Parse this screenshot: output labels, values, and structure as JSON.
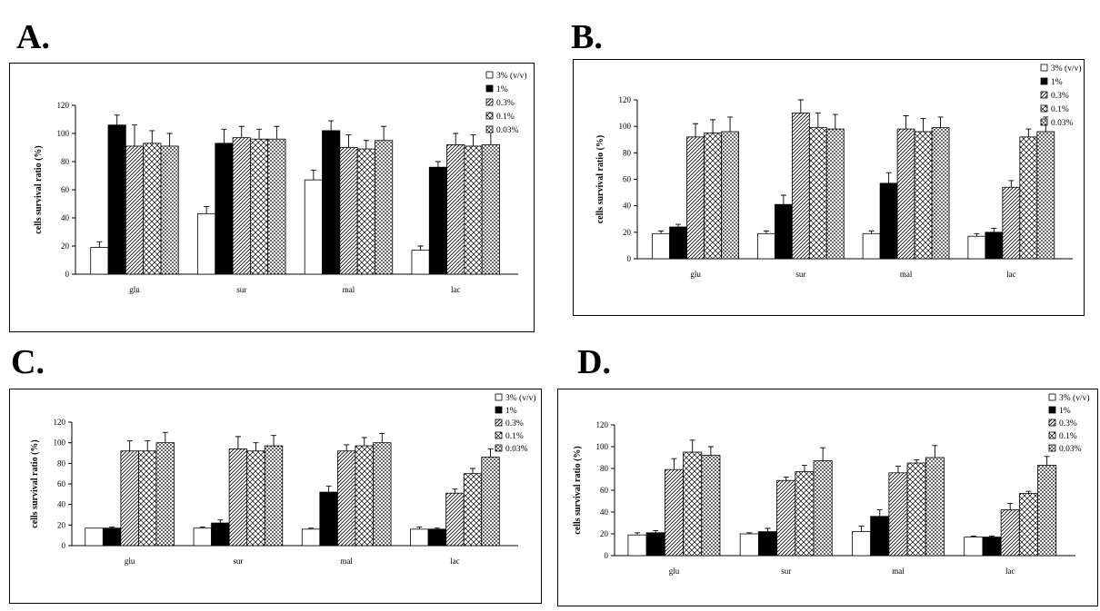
{
  "chart_data": [
    {
      "panel": "A.",
      "type": "bar",
      "ylabel": "cells survival ratio (%)",
      "ylim": [
        0,
        120
      ],
      "yticks": [
        0,
        20,
        40,
        60,
        80,
        100,
        120
      ],
      "categories": [
        "glu",
        "sur",
        "mal",
        "lac"
      ],
      "legend_position": "top-right",
      "series": [
        {
          "name": "3% (v/v)",
          "pattern": "white",
          "values": [
            19,
            43,
            67,
            17
          ],
          "errors": [
            4,
            5,
            7,
            3
          ]
        },
        {
          "name": "1%",
          "pattern": "black",
          "values": [
            106,
            93,
            102,
            76
          ],
          "errors": [
            7,
            10,
            7,
            4
          ]
        },
        {
          "name": "0.3%",
          "pattern": "diagonal",
          "values": [
            91,
            97,
            90,
            92
          ],
          "errors": [
            15,
            8,
            9,
            8
          ]
        },
        {
          "name": "0.1%",
          "pattern": "crosshatch",
          "values": [
            93,
            96,
            89,
            91
          ],
          "errors": [
            9,
            7,
            6,
            8
          ]
        },
        {
          "name": "0.03%",
          "pattern": "dots",
          "values": [
            91,
            96,
            95,
            92
          ],
          "errors": [
            9,
            9,
            10,
            9
          ]
        }
      ]
    },
    {
      "panel": "B.",
      "type": "bar",
      "ylabel": "cells survival ratio (%)",
      "ylim": [
        0,
        120
      ],
      "yticks": [
        0,
        20,
        40,
        60,
        80,
        100,
        120
      ],
      "categories": [
        "glu",
        "sur",
        "mal",
        "lac"
      ],
      "legend_position": "top-right",
      "series": [
        {
          "name": "3% (v/v)",
          "pattern": "white",
          "values": [
            19,
            19,
            19,
            17
          ],
          "errors": [
            2,
            2,
            2,
            2
          ]
        },
        {
          "name": "1%",
          "pattern": "black",
          "values": [
            24,
            41,
            57,
            20
          ],
          "errors": [
            2,
            7,
            8,
            3
          ]
        },
        {
          "name": "0.3%",
          "pattern": "diagonal",
          "values": [
            92,
            110,
            98,
            54
          ],
          "errors": [
            10,
            10,
            10,
            5
          ]
        },
        {
          "name": "0.1%",
          "pattern": "crosshatch",
          "values": [
            95,
            99,
            96,
            92
          ],
          "errors": [
            10,
            11,
            10,
            6
          ]
        },
        {
          "name": "0.03%",
          "pattern": "dots",
          "values": [
            96,
            98,
            99,
            96
          ],
          "errors": [
            11,
            11,
            8,
            11
          ]
        }
      ]
    },
    {
      "panel": "C.",
      "type": "bar",
      "ylabel": "cells survival ratio (%)",
      "ylim": [
        0,
        120
      ],
      "yticks": [
        0,
        20,
        40,
        60,
        80,
        100,
        120
      ],
      "categories": [
        "glu",
        "sur",
        "mal",
        "lac"
      ],
      "legend_position": "top-right",
      "series": [
        {
          "name": "3% (v/v)",
          "pattern": "white",
          "values": [
            17,
            17,
            16,
            16
          ],
          "errors": [
            0,
            1,
            1,
            2
          ]
        },
        {
          "name": "1%",
          "pattern": "black",
          "values": [
            17,
            22,
            52,
            16
          ],
          "errors": [
            1,
            3,
            6,
            1
          ]
        },
        {
          "name": "0.3%",
          "pattern": "diagonal",
          "values": [
            92,
            94,
            92,
            51
          ],
          "errors": [
            10,
            12,
            6,
            4
          ]
        },
        {
          "name": "0.1%",
          "pattern": "crosshatch",
          "values": [
            92,
            92,
            97,
            70
          ],
          "errors": [
            10,
            8,
            8,
            5
          ]
        },
        {
          "name": "0.03%",
          "pattern": "dots",
          "values": [
            100,
            97,
            100,
            86
          ],
          "errors": [
            10,
            10,
            9,
            8
          ]
        }
      ]
    },
    {
      "panel": "D.",
      "type": "bar",
      "ylabel": "cells survival ratio (%)",
      "ylim": [
        0,
        120
      ],
      "yticks": [
        0,
        20,
        40,
        60,
        80,
        100,
        120
      ],
      "categories": [
        "glu",
        "sur",
        "mal",
        "lac"
      ],
      "legend_position": "top-right",
      "series": [
        {
          "name": "3% (v/v)",
          "pattern": "white",
          "values": [
            19,
            20,
            22,
            17
          ],
          "errors": [
            2,
            1,
            5,
            1
          ]
        },
        {
          "name": "1%",
          "pattern": "black",
          "values": [
            21,
            22,
            36,
            17
          ],
          "errors": [
            2,
            3,
            6,
            1
          ]
        },
        {
          "name": "0.3%",
          "pattern": "diagonal",
          "values": [
            79,
            69,
            76,
            42
          ],
          "errors": [
            10,
            3,
            6,
            6
          ]
        },
        {
          "name": "0.1%",
          "pattern": "crosshatch",
          "values": [
            95,
            77,
            85,
            57
          ],
          "errors": [
            11,
            6,
            3,
            2
          ]
        },
        {
          "name": "0.03%",
          "pattern": "dots",
          "values": [
            92,
            87,
            90,
            83
          ],
          "errors": [
            8,
            12,
            11,
            8
          ]
        }
      ]
    }
  ]
}
